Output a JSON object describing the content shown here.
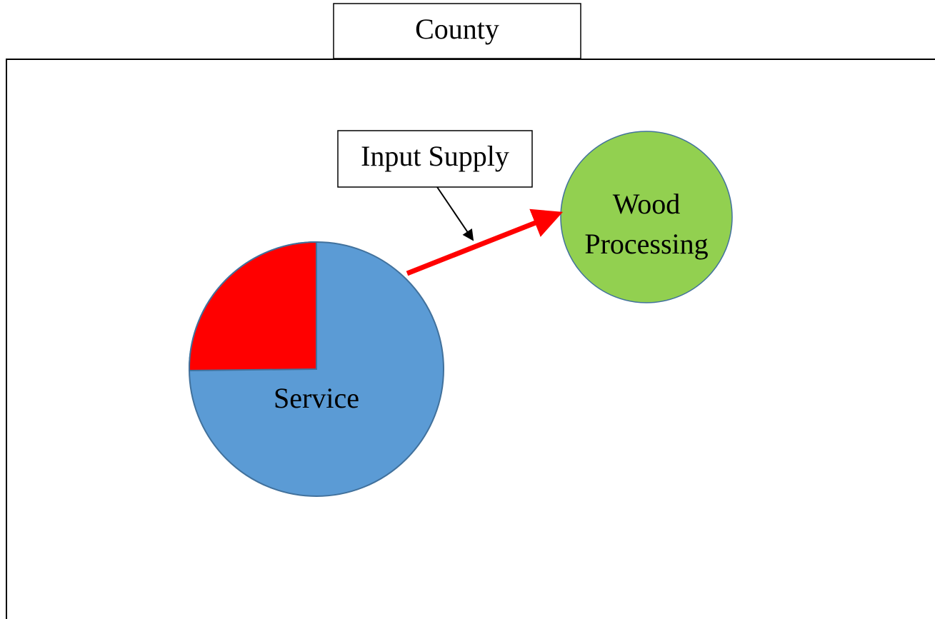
{
  "header": {
    "title": "County"
  },
  "annotation": {
    "label": "Input Supply"
  },
  "nodes": [
    {
      "label": "Service"
    },
    {
      "label_lines": [
        "Wood",
        "Processing"
      ]
    }
  ]
}
